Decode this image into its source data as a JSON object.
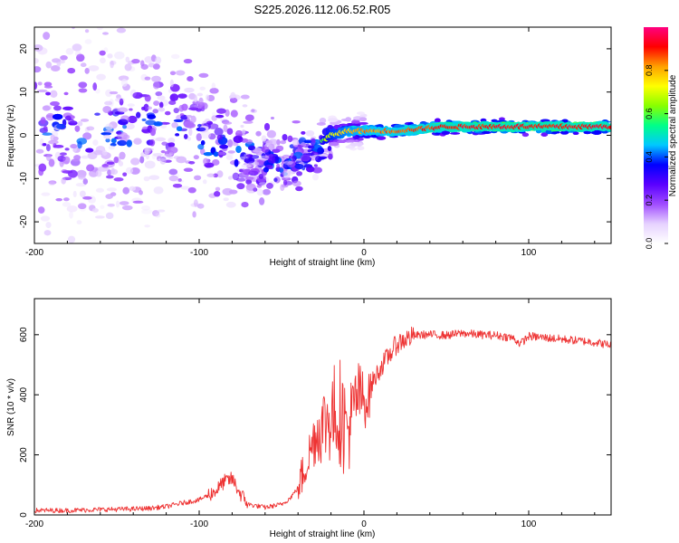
{
  "figure_title": "S225.2026.112.06.52.R05",
  "colorbar": {
    "label": "Normalized spectral amplitude",
    "ticks": [
      "0.0",
      "0.2",
      "0.4",
      "0.6",
      "0.8"
    ],
    "tick_values": [
      0.0,
      0.2,
      0.4,
      0.6,
      0.8
    ],
    "range": [
      0,
      1
    ],
    "colormap": [
      "#ffffff",
      "#e6d2ff",
      "#a04cff",
      "#5a00ff",
      "#0000ff",
      "#00c8ff",
      "#00ff88",
      "#88ff00",
      "#ffff00",
      "#ffa000",
      "#ff0000",
      "#ff0080"
    ]
  },
  "chart_data": [
    {
      "type": "heatmap",
      "title": "S225.2026.112.06.52.R05",
      "xlabel": "Height of straight line (km)",
      "ylabel": "Frequency (Hz)",
      "xlim": [
        -200,
        150
      ],
      "ylim": [
        -25,
        25
      ],
      "xticks": [
        -200,
        -100,
        0,
        100
      ],
      "xtick_labels": [
        "-200",
        "-100",
        "0",
        "100"
      ],
      "yticks": [
        -20,
        -10,
        0,
        10,
        20
      ],
      "ytick_labels": [
        "-20",
        "-10",
        "0",
        "10",
        "20"
      ],
      "ridge": {
        "x": [
          -200,
          -160,
          -120,
          -100,
          -80,
          -60,
          -50,
          -40,
          -30,
          -20,
          -10,
          0,
          20,
          50,
          80,
          100,
          120,
          150
        ],
        "frequency": [
          2,
          1,
          2,
          0,
          -3,
          -7,
          -6,
          -6,
          -3,
          0,
          1,
          1,
          1,
          2,
          2,
          2,
          2,
          2
        ],
        "amplitude": [
          0.25,
          0.25,
          0.25,
          0.3,
          0.32,
          0.38,
          0.42,
          0.42,
          0.5,
          0.7,
          0.78,
          0.82,
          0.85,
          0.9,
          0.92,
          0.92,
          0.92,
          0.92
        ]
      }
    },
    {
      "type": "line",
      "xlabel": "Height of straight line (km)",
      "ylabel": "SNR (10 * v/v)",
      "xlim": [
        -200,
        150
      ],
      "ylim": [
        0,
        720
      ],
      "xticks": [
        -200,
        -100,
        0,
        100
      ],
      "xtick_labels": [
        "-200",
        "-100",
        "0",
        "100"
      ],
      "yticks": [
        0,
        200,
        400,
        600
      ],
      "ytick_labels": [
        "0",
        "200",
        "400",
        "600"
      ],
      "series": [
        {
          "name": "SNR",
          "color": "#ee3333",
          "x": [
            -200,
            -180,
            -160,
            -140,
            -130,
            -120,
            -110,
            -100,
            -90,
            -85,
            -80,
            -75,
            -70,
            -65,
            -60,
            -55,
            -50,
            -45,
            -40,
            -35,
            -30,
            -25,
            -20,
            -15,
            -12,
            -10,
            -7,
            -5,
            -3,
            0,
            3,
            5,
            10,
            15,
            20,
            25,
            30,
            35,
            40,
            50,
            60,
            70,
            80,
            90,
            95,
            100,
            110,
            120,
            130,
            140,
            150
          ],
          "values": [
            15,
            15,
            18,
            20,
            22,
            28,
            40,
            50,
            80,
            110,
            120,
            70,
            35,
            30,
            25,
            30,
            35,
            55,
            90,
            170,
            260,
            300,
            330,
            360,
            300,
            280,
            330,
            380,
            400,
            380,
            390,
            440,
            490,
            530,
            570,
            585,
            595,
            600,
            600,
            598,
            605,
            600,
            598,
            590,
            570,
            595,
            590,
            585,
            580,
            575,
            565
          ]
        }
      ]
    }
  ]
}
